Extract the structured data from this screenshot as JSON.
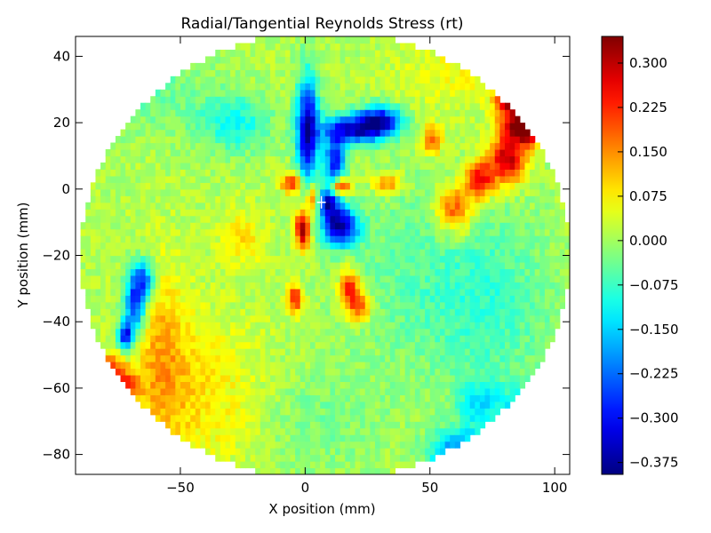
{
  "chart_data": {
    "type": "heatmap",
    "title": "Radial/Tangential Reynolds Stress (rt)",
    "xlabel": "X position (mm)",
    "ylabel": "Y position (mm)",
    "xlim": [
      -92,
      106
    ],
    "ylim": [
      -86,
      46
    ],
    "x_ticks": [
      {
        "value": -50,
        "label": "−50"
      },
      {
        "value": 0,
        "label": "0"
      },
      {
        "value": 50,
        "label": "50"
      },
      {
        "value": 100,
        "label": "100"
      }
    ],
    "y_ticks": [
      {
        "value": 40,
        "label": "40"
      },
      {
        "value": 20,
        "label": "20"
      },
      {
        "value": 0,
        "label": "0"
      },
      {
        "value": -20,
        "label": "−20"
      },
      {
        "value": -40,
        "label": "−40"
      },
      {
        "value": -60,
        "label": "−60"
      },
      {
        "value": -80,
        "label": "−80"
      }
    ],
    "colorbar": {
      "colormap": "jet",
      "range": [
        -0.395,
        0.345
      ],
      "ticks": [
        {
          "value": 0.3,
          "label": "0.300"
        },
        {
          "value": 0.225,
          "label": "0.225"
        },
        {
          "value": 0.15,
          "label": "0.150"
        },
        {
          "value": 0.075,
          "label": "0.075"
        },
        {
          "value": 0.0,
          "label": "0.000"
        },
        {
          "value": -0.075,
          "label": "−0.075"
        },
        {
          "value": -0.15,
          "label": "−0.150"
        },
        {
          "value": -0.225,
          "label": "−0.225"
        },
        {
          "value": -0.3,
          "label": "−0.300"
        },
        {
          "value": -0.375,
          "label": "−0.375"
        }
      ]
    },
    "domain": {
      "shape": "ellipse",
      "center": [
        8,
        -20
      ],
      "radius_x": 98,
      "radius_y": 68
    },
    "base_value": 0.01,
    "features": [
      {
        "x": 1,
        "y": 18,
        "sx": 3,
        "sy": 11,
        "value": -0.38
      },
      {
        "x": 20,
        "y": 18,
        "sx": 9,
        "sy": 3,
        "value": -0.33
      },
      {
        "x": 30,
        "y": 21,
        "sx": 6,
        "sy": 3,
        "value": -0.3
      },
      {
        "x": 12,
        "y": 8,
        "sx": 3,
        "sy": 6,
        "value": -0.3
      },
      {
        "x": 14,
        "y": -11,
        "sx": 5,
        "sy": 4,
        "value": -0.38
      },
      {
        "x": 9,
        "y": -4,
        "sx": 3,
        "sy": 3,
        "value": -0.3
      },
      {
        "x": -1,
        "y": -12,
        "sx": 2,
        "sy": 4,
        "value": 0.33
      },
      {
        "x": -5,
        "y": 2,
        "sx": 3,
        "sy": 2,
        "value": 0.25
      },
      {
        "x": 14,
        "y": 1,
        "sx": 3,
        "sy": 2,
        "value": 0.32
      },
      {
        "x": 3,
        "y": -3,
        "sx": 2,
        "sy": 3,
        "value": 0.2
      },
      {
        "x": 18,
        "y": -30,
        "sx": 3,
        "sy": 4,
        "value": 0.24
      },
      {
        "x": 22,
        "y": -36,
        "sx": 3,
        "sy": 3,
        "value": 0.18
      },
      {
        "x": -4,
        "y": -33,
        "sx": 2,
        "sy": 3,
        "value": 0.24
      },
      {
        "x": 33,
        "y": 2,
        "sx": 4,
        "sy": 2,
        "value": 0.16
      },
      {
        "x": 51,
        "y": 15,
        "sx": 3,
        "sy": 3,
        "value": 0.18
      },
      {
        "x": 85,
        "y": 40,
        "sx": 4,
        "sy": 6,
        "value": 0.35
      },
      {
        "x": 82,
        "y": 28,
        "sx": 4,
        "sy": 6,
        "value": 0.3
      },
      {
        "x": 88,
        "y": 18,
        "sx": 5,
        "sy": 3,
        "value": 0.32
      },
      {
        "x": 81,
        "y": 9,
        "sx": 5,
        "sy": 5,
        "value": 0.3
      },
      {
        "x": 70,
        "y": 3,
        "sx": 4,
        "sy": 4,
        "value": 0.26
      },
      {
        "x": 60,
        "y": -6,
        "sx": 5,
        "sy": 5,
        "value": 0.2
      },
      {
        "x": 91,
        "y": 29,
        "sx": 3,
        "sy": 8,
        "value": 0.25
      },
      {
        "x": -74,
        "y": -60,
        "sx": 4,
        "sy": 4,
        "value": 0.28
      },
      {
        "x": -79,
        "y": -54,
        "sx": 3,
        "sy": 3,
        "value": 0.2
      },
      {
        "x": -68,
        "y": -34,
        "sx": 3,
        "sy": 7,
        "value": -0.3
      },
      {
        "x": -72,
        "y": -44,
        "sx": 2,
        "sy": 3,
        "value": -0.33
      },
      {
        "x": -64,
        "y": -27,
        "sx": 3,
        "sy": 4,
        "value": -0.2
      },
      {
        "x": 62,
        "y": -80,
        "sx": 8,
        "sy": 5,
        "value": -0.25
      },
      {
        "x": 85,
        "y": -70,
        "sx": 5,
        "sy": 6,
        "value": -0.2
      },
      {
        "x": 70,
        "y": -65,
        "sx": 6,
        "sy": 5,
        "value": -0.12
      },
      {
        "x": -28,
        "y": 20,
        "sx": 10,
        "sy": 6,
        "value": -0.12
      },
      {
        "x": -40,
        "y": -62,
        "sx": 18,
        "sy": 16,
        "value": 0.07
      },
      {
        "x": -58,
        "y": -50,
        "sx": 8,
        "sy": 20,
        "value": 0.1
      },
      {
        "x": -25,
        "y": -15,
        "sx": 6,
        "sy": 6,
        "value": 0.08
      },
      {
        "x": 40,
        "y": -25,
        "sx": 20,
        "sy": 20,
        "value": -0.05
      },
      {
        "x": 75,
        "y": -35,
        "sx": 18,
        "sy": 20,
        "value": -0.08
      },
      {
        "x": 60,
        "y": 35,
        "sx": 16,
        "sy": 8,
        "value": 0.05
      },
      {
        "x": -60,
        "y": 30,
        "sx": 16,
        "sy": 10,
        "value": -0.05
      },
      {
        "x": 5,
        "y": -70,
        "sx": 20,
        "sy": 12,
        "value": -0.04
      }
    ],
    "marker": {
      "x": 6.5,
      "y": -4,
      "symbol": "+",
      "color": "#ffffff"
    }
  }
}
